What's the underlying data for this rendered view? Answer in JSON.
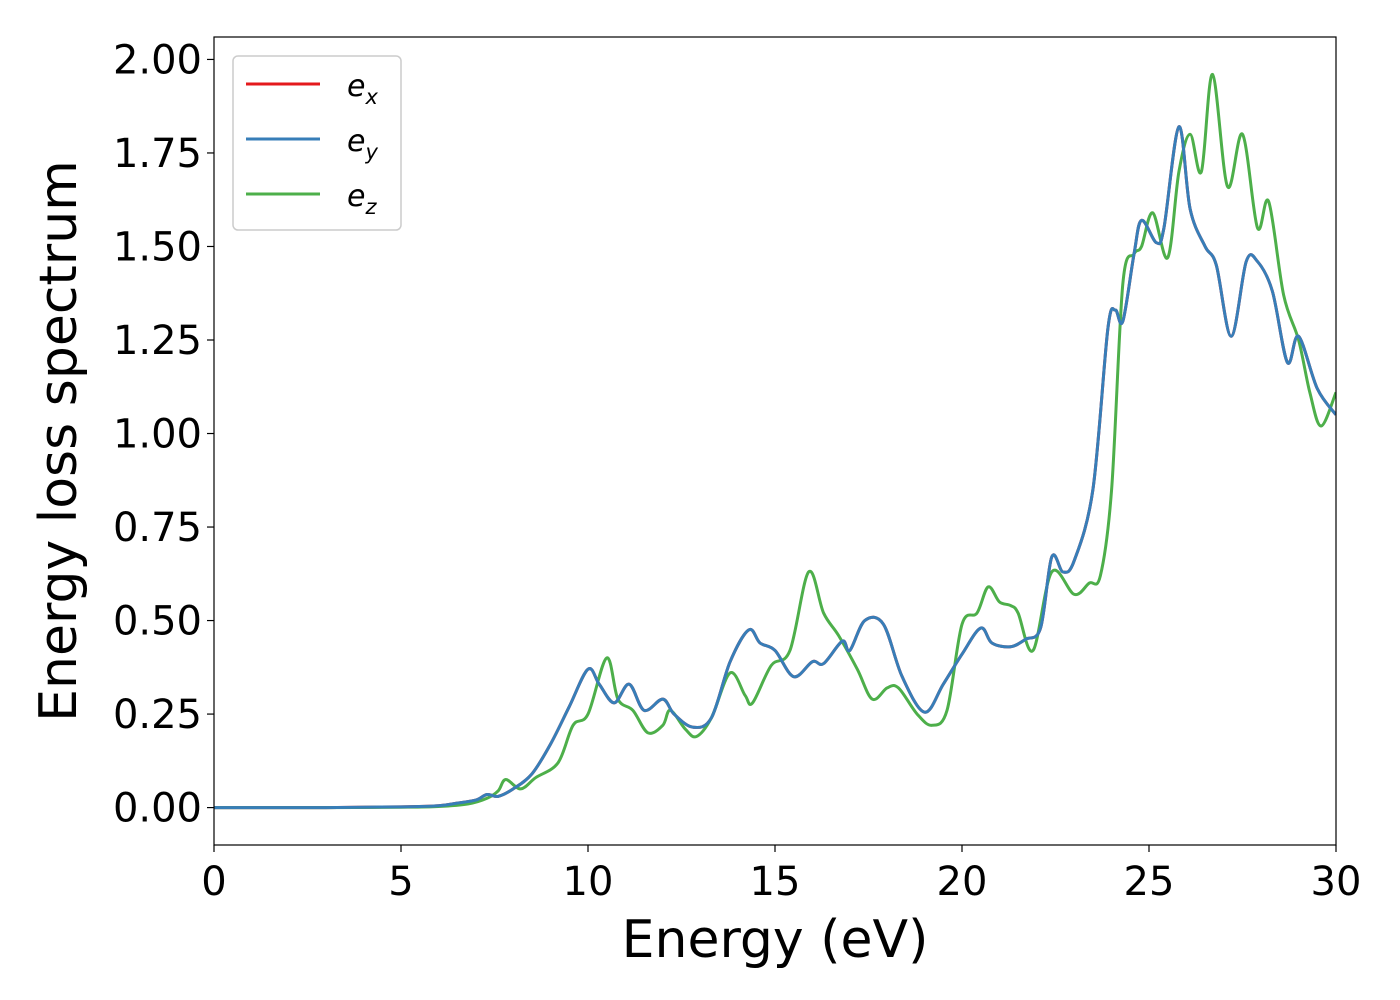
{
  "chart_data": {
    "type": "line",
    "xlabel": "Energy (eV)",
    "ylabel": "Energy loss spectrum",
    "xlim": [
      0,
      30
    ],
    "ylim": [
      -0.1,
      2.06
    ],
    "xticks": [
      0,
      5,
      10,
      15,
      20,
      25,
      30
    ],
    "xtick_labels": [
      "0",
      "5",
      "10",
      "15",
      "20",
      "25",
      "30"
    ],
    "yticks": [
      0.0,
      0.25,
      0.5,
      0.75,
      1.0,
      1.25,
      1.5,
      1.75,
      2.0
    ],
    "ytick_labels": [
      "0.00",
      "0.25",
      "0.50",
      "0.75",
      "1.00",
      "1.25",
      "1.50",
      "1.75",
      "2.00"
    ],
    "grid": false,
    "legend_position": "top-left",
    "series": [
      {
        "name": "e",
        "subscript": "x",
        "color": "#e41a1c",
        "points": [
          [
            0,
            0
          ],
          [
            3,
            0
          ],
          [
            5,
            0.002
          ],
          [
            6,
            0.005
          ],
          [
            6.5,
            0.012
          ],
          [
            7,
            0.02
          ],
          [
            7.3,
            0.035
          ],
          [
            7.6,
            0.03
          ],
          [
            8,
            0.05
          ],
          [
            8.5,
            0.09
          ],
          [
            9,
            0.17
          ],
          [
            9.5,
            0.27
          ],
          [
            10,
            0.37
          ],
          [
            10.3,
            0.33
          ],
          [
            10.7,
            0.28
          ],
          [
            11.1,
            0.33
          ],
          [
            11.5,
            0.26
          ],
          [
            12,
            0.29
          ],
          [
            12.3,
            0.25
          ],
          [
            12.8,
            0.215
          ],
          [
            13.3,
            0.24
          ],
          [
            13.8,
            0.39
          ],
          [
            14.3,
            0.475
          ],
          [
            14.6,
            0.44
          ],
          [
            15,
            0.42
          ],
          [
            15.5,
            0.35
          ],
          [
            16,
            0.39
          ],
          [
            16.3,
            0.385
          ],
          [
            16.8,
            0.445
          ],
          [
            17,
            0.42
          ],
          [
            17.4,
            0.5
          ],
          [
            17.9,
            0.49
          ],
          [
            18.4,
            0.35
          ],
          [
            19,
            0.255
          ],
          [
            19.5,
            0.33
          ],
          [
            20,
            0.41
          ],
          [
            20.5,
            0.48
          ],
          [
            20.8,
            0.44
          ],
          [
            21.3,
            0.43
          ],
          [
            21.7,
            0.45
          ],
          [
            22.1,
            0.48
          ],
          [
            22.4,
            0.67
          ],
          [
            22.7,
            0.63
          ],
          [
            23,
            0.66
          ],
          [
            23.5,
            0.85
          ],
          [
            23.9,
            1.28
          ],
          [
            24.1,
            1.33
          ],
          [
            24.3,
            1.3
          ],
          [
            24.6,
            1.48
          ],
          [
            24.8,
            1.57
          ],
          [
            25.2,
            1.51
          ],
          [
            25.4,
            1.55
          ],
          [
            25.8,
            1.82
          ],
          [
            26.1,
            1.6
          ],
          [
            26.5,
            1.5
          ],
          [
            26.8,
            1.45
          ],
          [
            27.2,
            1.26
          ],
          [
            27.6,
            1.46
          ],
          [
            27.9,
            1.46
          ],
          [
            28.3,
            1.38
          ],
          [
            28.7,
            1.19
          ],
          [
            29,
            1.26
          ],
          [
            29.5,
            1.12
          ],
          [
            30,
            1.05
          ]
        ]
      },
      {
        "name": "e",
        "subscript": "y",
        "color": "#377eb8",
        "points": [
          [
            0,
            0
          ],
          [
            3,
            0
          ],
          [
            5,
            0.002
          ],
          [
            6,
            0.005
          ],
          [
            6.5,
            0.012
          ],
          [
            7,
            0.02
          ],
          [
            7.3,
            0.035
          ],
          [
            7.6,
            0.03
          ],
          [
            8,
            0.05
          ],
          [
            8.5,
            0.09
          ],
          [
            9,
            0.17
          ],
          [
            9.5,
            0.27
          ],
          [
            10,
            0.37
          ],
          [
            10.3,
            0.33
          ],
          [
            10.7,
            0.28
          ],
          [
            11.1,
            0.33
          ],
          [
            11.5,
            0.26
          ],
          [
            12,
            0.29
          ],
          [
            12.3,
            0.25
          ],
          [
            12.8,
            0.215
          ],
          [
            13.3,
            0.24
          ],
          [
            13.8,
            0.39
          ],
          [
            14.3,
            0.475
          ],
          [
            14.6,
            0.44
          ],
          [
            15,
            0.42
          ],
          [
            15.5,
            0.35
          ],
          [
            16,
            0.39
          ],
          [
            16.3,
            0.385
          ],
          [
            16.8,
            0.445
          ],
          [
            17,
            0.42
          ],
          [
            17.4,
            0.5
          ],
          [
            17.9,
            0.49
          ],
          [
            18.4,
            0.35
          ],
          [
            19,
            0.255
          ],
          [
            19.5,
            0.33
          ],
          [
            20,
            0.41
          ],
          [
            20.5,
            0.48
          ],
          [
            20.8,
            0.44
          ],
          [
            21.3,
            0.43
          ],
          [
            21.7,
            0.45
          ],
          [
            22.1,
            0.48
          ],
          [
            22.4,
            0.67
          ],
          [
            22.7,
            0.63
          ],
          [
            23,
            0.66
          ],
          [
            23.5,
            0.85
          ],
          [
            23.9,
            1.28
          ],
          [
            24.1,
            1.33
          ],
          [
            24.3,
            1.3
          ],
          [
            24.6,
            1.48
          ],
          [
            24.8,
            1.57
          ],
          [
            25.2,
            1.51
          ],
          [
            25.4,
            1.55
          ],
          [
            25.8,
            1.82
          ],
          [
            26.1,
            1.6
          ],
          [
            26.5,
            1.5
          ],
          [
            26.8,
            1.45
          ],
          [
            27.2,
            1.26
          ],
          [
            27.6,
            1.46
          ],
          [
            27.9,
            1.46
          ],
          [
            28.3,
            1.38
          ],
          [
            28.7,
            1.19
          ],
          [
            29,
            1.26
          ],
          [
            29.5,
            1.12
          ],
          [
            30,
            1.05
          ]
        ]
      },
      {
        "name": "e",
        "subscript": "z",
        "color": "#4daf4a",
        "points": [
          [
            0,
            0
          ],
          [
            3,
            0
          ],
          [
            5,
            0.001
          ],
          [
            6,
            0.003
          ],
          [
            6.8,
            0.01
          ],
          [
            7.3,
            0.025
          ],
          [
            7.6,
            0.045
          ],
          [
            7.8,
            0.075
          ],
          [
            8.2,
            0.05
          ],
          [
            8.6,
            0.08
          ],
          [
            9.2,
            0.12
          ],
          [
            9.6,
            0.22
          ],
          [
            10,
            0.25
          ],
          [
            10.5,
            0.4
          ],
          [
            10.8,
            0.29
          ],
          [
            11.2,
            0.26
          ],
          [
            11.6,
            0.2
          ],
          [
            12,
            0.22
          ],
          [
            12.2,
            0.26
          ],
          [
            12.6,
            0.21
          ],
          [
            12.9,
            0.19
          ],
          [
            13.3,
            0.24
          ],
          [
            13.8,
            0.36
          ],
          [
            14.2,
            0.3
          ],
          [
            14.4,
            0.28
          ],
          [
            14.9,
            0.38
          ],
          [
            15.4,
            0.42
          ],
          [
            15.9,
            0.63
          ],
          [
            16.3,
            0.52
          ],
          [
            16.7,
            0.46
          ],
          [
            17.2,
            0.37
          ],
          [
            17.6,
            0.29
          ],
          [
            18,
            0.32
          ],
          [
            18.3,
            0.32
          ],
          [
            18.8,
            0.25
          ],
          [
            19.2,
            0.22
          ],
          [
            19.6,
            0.26
          ],
          [
            20,
            0.49
          ],
          [
            20.4,
            0.52
          ],
          [
            20.7,
            0.59
          ],
          [
            21,
            0.55
          ],
          [
            21.3,
            0.54
          ],
          [
            21.5,
            0.52
          ],
          [
            21.9,
            0.42
          ],
          [
            22.4,
            0.63
          ],
          [
            23,
            0.57
          ],
          [
            23.4,
            0.6
          ],
          [
            23.7,
            0.62
          ],
          [
            24,
            0.85
          ],
          [
            24.3,
            1.4
          ],
          [
            24.6,
            1.48
          ],
          [
            24.8,
            1.5
          ],
          [
            25.1,
            1.59
          ],
          [
            25.5,
            1.47
          ],
          [
            25.8,
            1.7
          ],
          [
            26.1,
            1.8
          ],
          [
            26.4,
            1.7
          ],
          [
            26.7,
            1.96
          ],
          [
            27.1,
            1.66
          ],
          [
            27.5,
            1.8
          ],
          [
            27.9,
            1.55
          ],
          [
            28.2,
            1.62
          ],
          [
            28.6,
            1.37
          ],
          [
            29,
            1.25
          ],
          [
            29.3,
            1.11
          ],
          [
            29.6,
            1.02
          ],
          [
            30,
            1.11
          ]
        ]
      }
    ]
  }
}
